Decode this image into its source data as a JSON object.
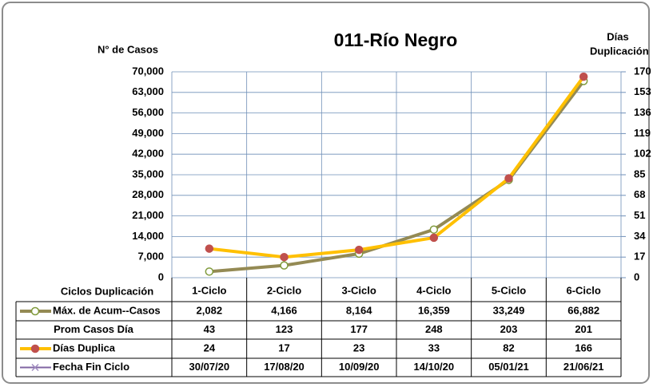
{
  "chart_data": {
    "type": "line",
    "title": "011-Río Negro",
    "y_label": "N° de Casos",
    "y2_label": [
      "Días",
      "Duplicación"
    ],
    "table_header": "Ciclos Duplicación",
    "categories": [
      "1-Ciclo",
      "2-Ciclo",
      "3-Ciclo",
      "4-Ciclo",
      "5-Ciclo",
      "6-Ciclo"
    ],
    "ylim": [
      0,
      70000
    ],
    "yticks": [
      0,
      {
        "value": 7000,
        "label": "7,000"
      },
      {
        "value": 14000,
        "label": "14,000"
      },
      {
        "value": 21000,
        "label": "21,000"
      },
      {
        "value": 28000,
        "label": "28,000"
      },
      {
        "value": 35000,
        "label": "35,000"
      },
      {
        "value": 42000,
        "label": "42,000"
      },
      {
        "value": 49000,
        "label": "49,000"
      },
      {
        "value": 56000,
        "label": "56,000"
      },
      {
        "value": 63000,
        "label": "63,000"
      },
      {
        "value": 70000,
        "label": "70,000"
      }
    ],
    "y2lim": [
      0,
      170
    ],
    "y2ticks": [
      0,
      17,
      34,
      51,
      68,
      85,
      102,
      119,
      136,
      153,
      170
    ],
    "grid": true,
    "series": [
      {
        "name": "Máx. de Acum--Casos",
        "color": "#948a54",
        "marker_color": "#ffffff",
        "values": [
          2082,
          4166,
          8164,
          16359,
          33249,
          66882
        ],
        "value_labels": [
          "2,082",
          "4,166",
          "8,164",
          "16,359",
          "33,249",
          "66,882"
        ]
      },
      {
        "name": "Días Duplica",
        "color": "#ffc000",
        "marker_color": "#c0504d",
        "axis": "y2",
        "values": [
          24,
          17,
          23,
          33,
          82,
          166
        ]
      }
    ],
    "extra_rows": [
      {
        "name": "Prom Casos Día",
        "values": [
          43,
          123,
          177,
          248,
          203,
          201
        ]
      },
      {
        "name": "Fecha Fin Ciclo",
        "color": "#8064a2",
        "values": [
          "30/07/20",
          "17/08/20",
          "10/09/20",
          "14/10/20",
          "05/01/21",
          "21/06/21"
        ]
      }
    ]
  }
}
